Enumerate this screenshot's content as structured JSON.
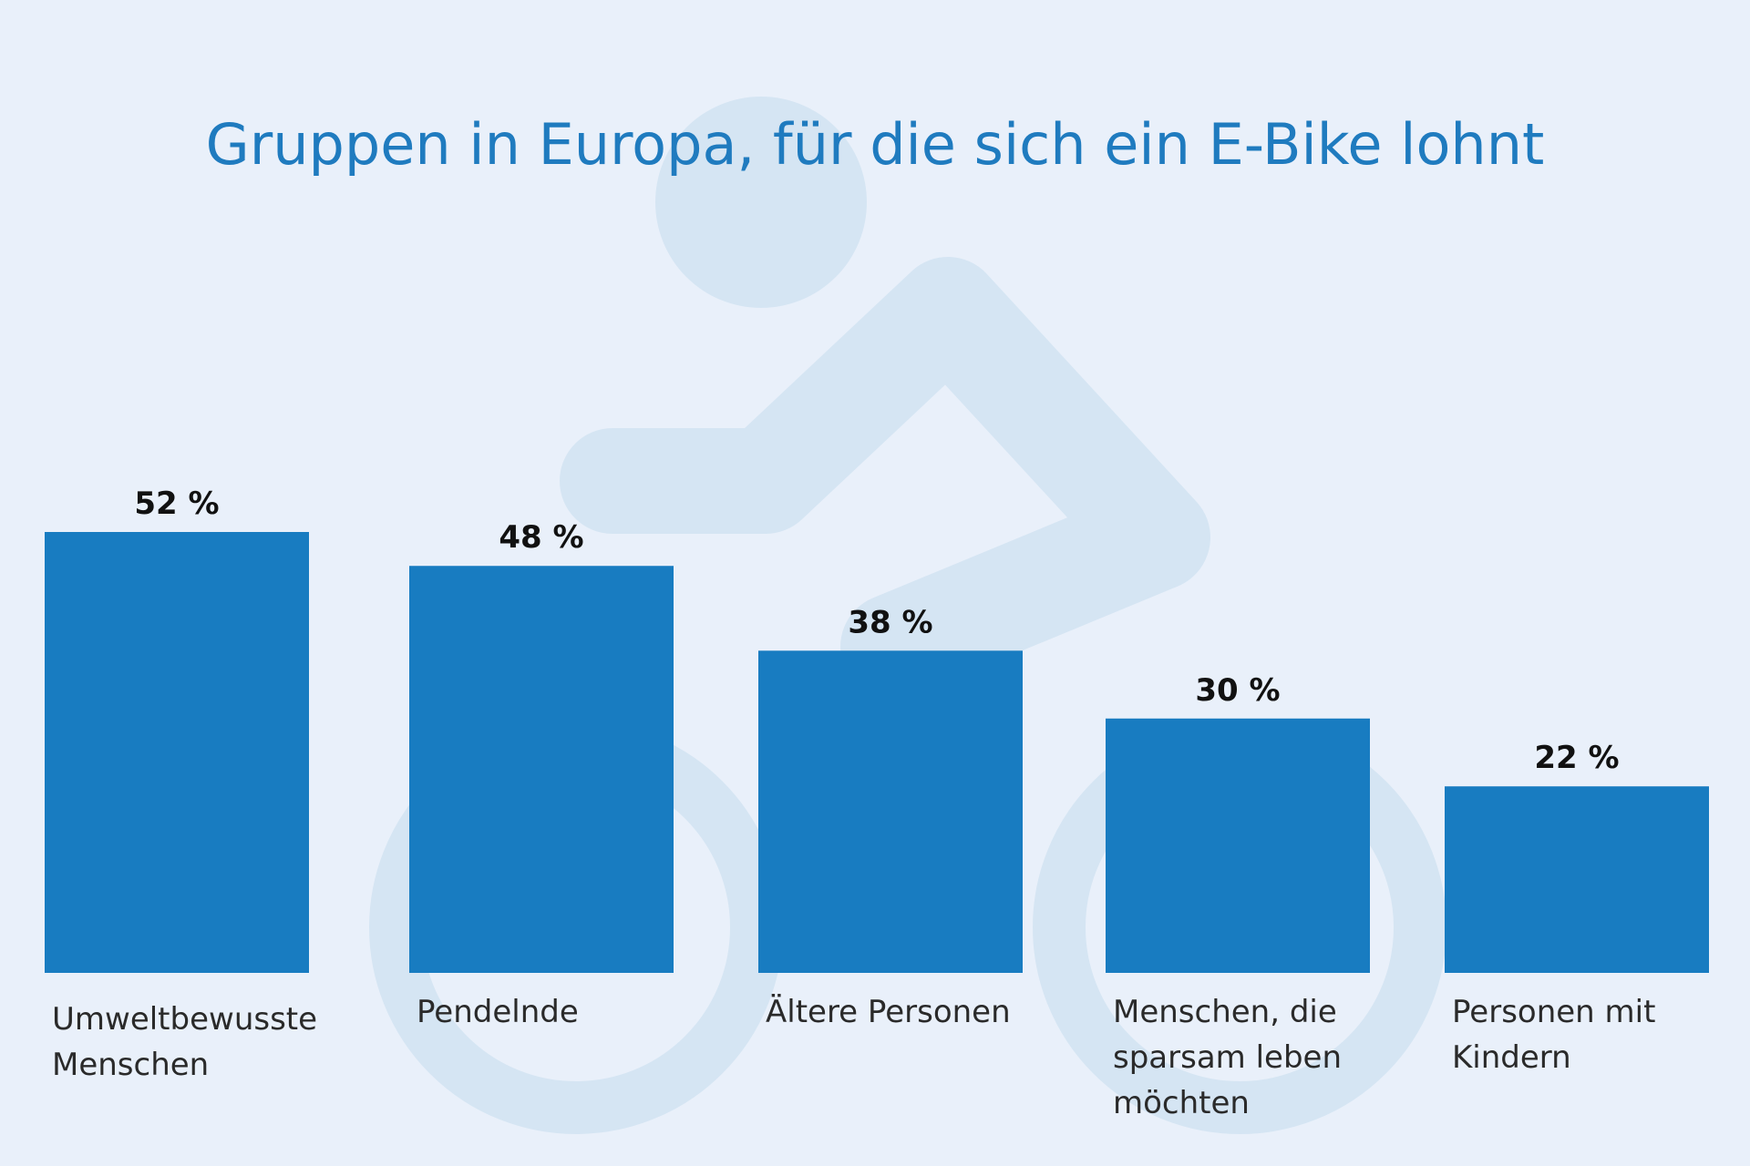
{
  "colors": {
    "background": "#e9f0fa",
    "bar": "#187cc1",
    "title": "#1f7bbf",
    "value_label": "#111111",
    "category_label": "#2a2a2a",
    "watermark": "#d5e5f3"
  },
  "watermark": {
    "icon": "cyclist-icon"
  },
  "chart_data": {
    "type": "bar",
    "title": "Gruppen in Europa, für die sich ein E-Bike lohnt",
    "xlabel": "",
    "ylabel": "",
    "ylim": [
      0,
      52
    ],
    "grid": false,
    "legend": "none",
    "value_suffix": " %",
    "categories": [
      [
        "Umweltbewusste",
        "Menschen"
      ],
      [
        "Pendelnde"
      ],
      [
        "Ältere Personen"
      ],
      [
        "Menschen, die",
        "sparsam leben",
        "möchten"
      ],
      [
        "Personen mit",
        "Kindern"
      ]
    ],
    "values": [
      52,
      48,
      38,
      30,
      22
    ],
    "data_labels": [
      "52 %",
      "48 %",
      "38 %",
      "30 %",
      "22 %"
    ]
  }
}
